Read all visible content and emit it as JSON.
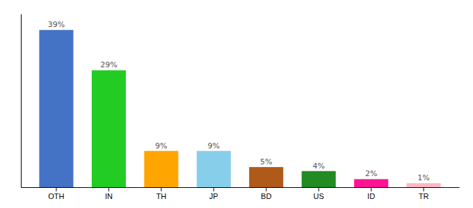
{
  "chart_data": {
    "type": "bar",
    "categories": [
      "OTH",
      "IN",
      "TH",
      "JP",
      "BD",
      "US",
      "ID",
      "TR"
    ],
    "values": [
      39,
      29,
      9,
      9,
      5,
      4,
      2,
      1
    ],
    "value_labels": [
      "39%",
      "29%",
      "9%",
      "9%",
      "5%",
      "4%",
      "2%",
      "1%"
    ],
    "colors": [
      "#4472c4",
      "#22cc22",
      "#ffa500",
      "#87ceeb",
      "#b05a1a",
      "#228b22",
      "#ff1493",
      "#ffb6c1"
    ],
    "ylim": [
      0,
      43
    ],
    "data_labels": true,
    "tick_labels": "x",
    "grid": false
  }
}
